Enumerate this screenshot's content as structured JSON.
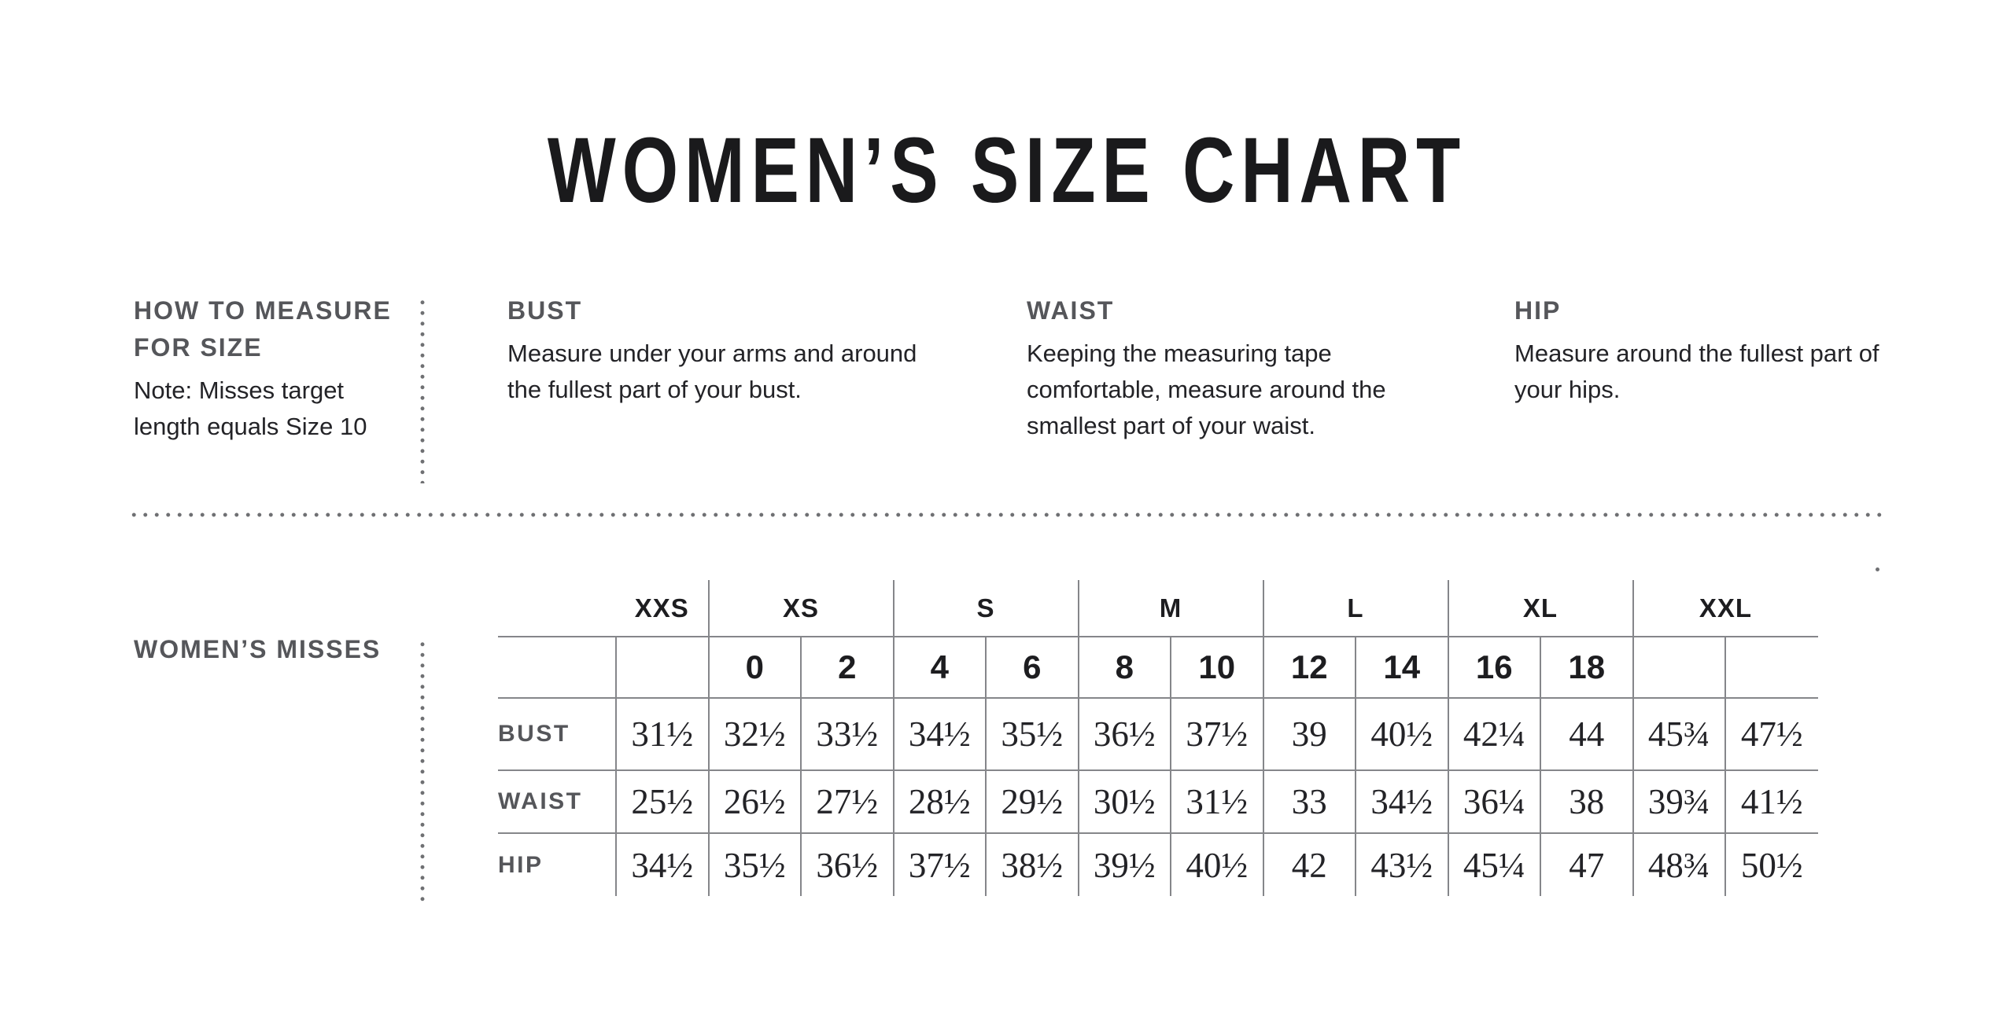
{
  "title": "WOMEN’S SIZE CHART",
  "how_to_measure": {
    "heading": "HOW TO MEASURE\nFOR SIZE",
    "note": "Note: Misses target\nlength equals Size 10"
  },
  "guides": [
    {
      "label": "BUST",
      "description": "Measure under your arms and around the fullest part of your bust."
    },
    {
      "label": "WAIST",
      "description": "Keeping the measuring tape comfortable, measure around the smallest part of your waist."
    },
    {
      "label": "HIP",
      "description": "Measure around the fullest part of your hips."
    }
  ],
  "size_table": {
    "section_label": "WOMEN’S MISSES",
    "groups": [
      {
        "label": "XXS",
        "span": 1
      },
      {
        "label": "XS",
        "span": 2
      },
      {
        "label": "S",
        "span": 2
      },
      {
        "label": "M",
        "span": 2
      },
      {
        "label": "L",
        "span": 2
      },
      {
        "label": "XL",
        "span": 2
      },
      {
        "label": "XXL",
        "span": 2
      }
    ],
    "numeric_sizes": [
      "",
      "0",
      "2",
      "4",
      "6",
      "8",
      "10",
      "12",
      "14",
      "16",
      "18",
      "",
      ""
    ],
    "rows": [
      {
        "label": "BUST",
        "values": [
          "31½",
          "32½",
          "33½",
          "34½",
          "35½",
          "36½",
          "37½",
          "39",
          "40½",
          "42¼",
          "44",
          "45¾",
          "47½"
        ]
      },
      {
        "label": "WAIST",
        "values": [
          "25½",
          "26½",
          "27½",
          "28½",
          "29½",
          "30½",
          "31½",
          "33",
          "34½",
          "36¼",
          "38",
          "39¾",
          "41½"
        ]
      },
      {
        "label": "HIP",
        "values": [
          "34½",
          "35½",
          "36½",
          "37½",
          "38½",
          "39½",
          "40½",
          "42",
          "43½",
          "45¼",
          "47",
          "48¾",
          "50½"
        ]
      }
    ]
  },
  "colors": {
    "background": "#ffffff",
    "title_text": "#1a1a1c",
    "section_label_text": "#55565a",
    "body_text": "#232327",
    "table_value_text": "#232327",
    "grid_line": "#85868a",
    "dotted_divider": "#6f7073"
  }
}
